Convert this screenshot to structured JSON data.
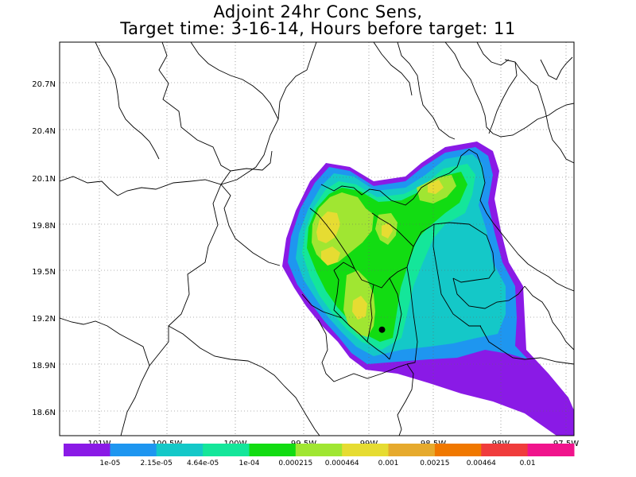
{
  "title": {
    "line1": "Adjoint 24hr Conc Sens,",
    "line2": "Target time: 3-16-14, Hours before target: 11"
  },
  "axes": {
    "lat_labels": [
      "20.7N",
      "20.4N",
      "20.1N",
      "19.8N",
      "19.5N",
      "19.2N",
      "18.9N",
      "18.6N"
    ],
    "lon_labels": [
      "101W",
      "100.5W",
      "100W",
      "99.5W",
      "99W",
      "98.5W",
      "98W",
      "97.5W"
    ],
    "lat_range": [
      18.5,
      20.95
    ],
    "lon_range": [
      -101.25,
      -97.5
    ],
    "grid": "dotted"
  },
  "colorbar": {
    "colors": [
      "#8a1ae6",
      "#1e96f0",
      "#14c8c8",
      "#14e69a",
      "#12dc12",
      "#a0e632",
      "#e6dc32",
      "#e6aa2d",
      "#f07800",
      "#f03c3c",
      "#f0148c"
    ],
    "labels": [
      "1e-05",
      "2.15e-05",
      "4.64e-05",
      "1e-04",
      "0.000215",
      "0.000464",
      "0.001",
      "0.00215",
      "0.00464",
      "0.01"
    ]
  },
  "marker": {
    "lat": 19.16,
    "lon": -98.9
  }
}
